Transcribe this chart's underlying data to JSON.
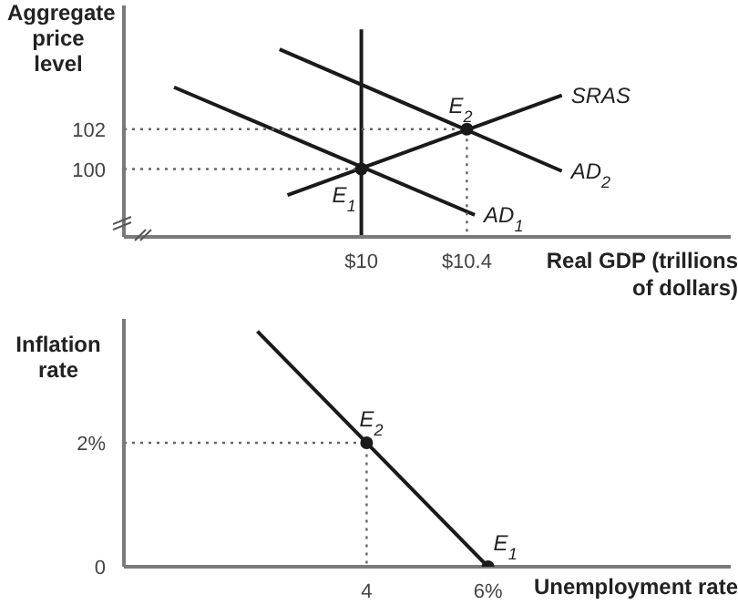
{
  "chart_data": [
    {
      "type": "line",
      "ylabel": "Aggregate price level",
      "xlabel": "Real GDP (trillions of dollars)",
      "xlim": [
        9.1,
        11.4
      ],
      "ylim": [
        96.6,
        108.2
      ],
      "xticks": [
        {
          "value": 10,
          "label": "$10"
        },
        {
          "value": 10.4,
          "label": "$10.4"
        }
      ],
      "yticks": [
        100,
        102
      ],
      "grid": false,
      "legend": false,
      "series": [
        {
          "color": "#1a1a1a",
          "x": [
            10,
            10
          ],
          "values": [
            96.6,
            107
          ]
        },
        {
          "name": "AD$_{1}$",
          "color": "#1a1a1a",
          "x": [
            9.29,
            10.43
          ],
          "values": [
            104.1,
            97.7
          ]
        },
        {
          "name": "AD$_{2}$",
          "color": "#1a1a1a",
          "x": [
            9.69,
            10.76
          ],
          "values": [
            106,
            99.9
          ]
        },
        {
          "name": "SRAS",
          "color": "#1a1a1a",
          "x": [
            9.72,
            10.76
          ],
          "values": [
            98.7,
            103.7
          ]
        },
        {
          "color": "#666666",
          "line_style": "dotted",
          "x": [
            9.1,
            10
          ],
          "values": [
            100,
            100
          ]
        },
        {
          "color": "#666666",
          "line_style": "dotted",
          "x": [
            9.1,
            10.4,
            10.4
          ],
          "values": [
            102,
            102,
            96.6
          ]
        },
        {
          "type": "scatter",
          "color": "#1a1a1a",
          "x": [
            10,
            10.4
          ],
          "values": [
            100,
            102
          ]
        }
      ],
      "annotations": [
        {
          "text": "E$_{1}$",
          "x": 10,
          "y": 100
        },
        {
          "text": "E$_{2}$",
          "x": 10.4,
          "y": 102
        }
      ]
    },
    {
      "type": "line",
      "ylabel": "Inflation rate",
      "xlabel": "Unemployment rate",
      "xlim": [
        0,
        10
      ],
      "ylim": [
        0,
        4
      ],
      "xticks": [
        4,
        {
          "value": 6,
          "label": "6%"
        }
      ],
      "yticks": [
        0,
        {
          "value": 2,
          "label": "2%"
        }
      ],
      "grid": false,
      "legend": false,
      "series": [
        {
          "color": "#1a1a1a",
          "x": [
            2.2,
            6
          ],
          "values": [
            3.8,
            0
          ]
        },
        {
          "color": "#666666",
          "line_style": "dotted",
          "x": [
            0,
            4,
            4
          ],
          "values": [
            2,
            2,
            0
          ]
        },
        {
          "type": "scatter",
          "color": "#1a1a1a",
          "x": [
            4,
            6
          ],
          "values": [
            2,
            0
          ]
        }
      ],
      "annotations": [
        {
          "text": "E$_{2}$",
          "x": 4,
          "y": 2
        },
        {
          "text": "E$_{1}$",
          "x": 6,
          "y": 0
        }
      ]
    }
  ]
}
